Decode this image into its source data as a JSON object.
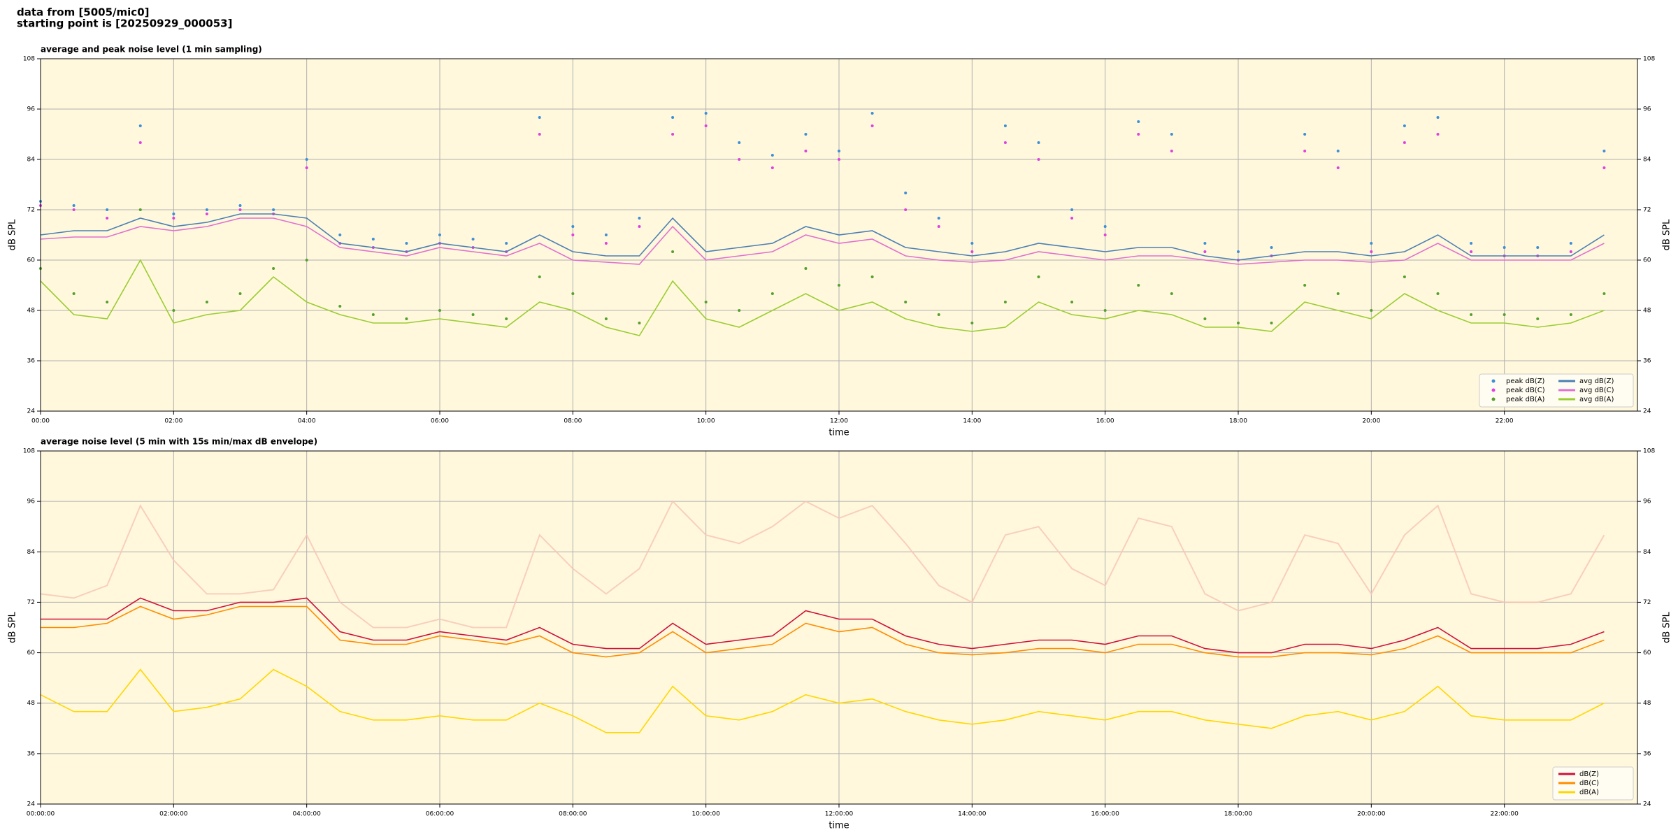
{
  "header": [
    "data from [5005/mic0]",
    "starting point is [20250929_000053]"
  ],
  "chart_data": [
    {
      "type": "line",
      "title": "average and peak noise level (1 min sampling)",
      "x_label": "time",
      "y_label": "dB SPL",
      "xlim": [
        0,
        24
      ],
      "ylim": [
        24,
        108
      ],
      "yticks": [
        24,
        36,
        48,
        60,
        72,
        84,
        96,
        108
      ],
      "xticks": [
        {
          "value": 0,
          "label": "00:00"
        },
        {
          "value": 2,
          "label": "02:00"
        },
        {
          "value": 4,
          "label": "04:00"
        },
        {
          "value": 6,
          "label": "06:00"
        },
        {
          "value": 8,
          "label": "08:00"
        },
        {
          "value": 10,
          "label": "10:00"
        },
        {
          "value": 12,
          "label": "12:00"
        },
        {
          "value": 14,
          "label": "14:00"
        },
        {
          "value": 16,
          "label": "16:00"
        },
        {
          "value": 18,
          "label": "18:00"
        },
        {
          "value": 20,
          "label": "20:00"
        },
        {
          "value": 22,
          "label": "22:00"
        }
      ],
      "grid": true,
      "legend": "lower right",
      "background": "#fff8dc",
      "x": [
        0,
        0.5,
        1,
        1.5,
        2,
        2.5,
        3,
        3.5,
        4,
        4.5,
        5,
        5.5,
        6,
        6.5,
        7,
        7.5,
        8,
        8.5,
        9,
        9.5,
        10,
        10.5,
        11,
        11.5,
        12,
        12.5,
        13,
        13.5,
        14,
        14.5,
        15,
        15.5,
        16,
        16.5,
        17,
        17.5,
        18,
        18.5,
        19,
        19.5,
        20,
        20.5,
        21,
        21.5,
        22,
        22.5,
        23,
        23.5
      ],
      "series": [
        {
          "name": "peak dB(Z)",
          "kind": "scatter",
          "color": "#3b8fd9",
          "values": [
            74,
            73,
            72,
            92,
            71,
            72,
            73,
            72,
            84,
            66,
            65,
            64,
            66,
            65,
            64,
            94,
            68,
            66,
            70,
            94,
            95,
            88,
            85,
            90,
            86,
            95,
            76,
            70,
            64,
            92,
            88,
            72,
            68,
            93,
            90,
            64,
            62,
            63,
            90,
            86,
            64,
            92,
            94,
            64,
            63,
            63,
            64,
            86
          ]
        },
        {
          "name": "peak dB(C)",
          "kind": "scatter",
          "color": "#e040e0",
          "values": [
            73,
            72,
            70,
            88,
            70,
            71,
            72,
            71,
            82,
            64,
            63,
            62,
            64,
            63,
            62,
            90,
            66,
            64,
            68,
            90,
            92,
            84,
            82,
            86,
            84,
            92,
            72,
            68,
            62,
            88,
            84,
            70,
            66,
            90,
            86,
            62,
            60,
            61,
            86,
            82,
            62,
            88,
            90,
            62,
            61,
            61,
            62,
            82
          ]
        },
        {
          "name": "peak dB(A)",
          "kind": "scatter",
          "color": "#55a030",
          "values": [
            58,
            52,
            50,
            72,
            48,
            50,
            52,
            58,
            60,
            49,
            47,
            46,
            48,
            47,
            46,
            56,
            52,
            46,
            45,
            62,
            50,
            48,
            52,
            58,
            54,
            56,
            50,
            47,
            45,
            50,
            56,
            50,
            48,
            54,
            52,
            46,
            45,
            45,
            54,
            52,
            48,
            56,
            52,
            47,
            47,
            46,
            47,
            52
          ]
        },
        {
          "name": "avg dB(Z)",
          "kind": "line",
          "color": "#4a7fb5",
          "values": [
            66,
            67,
            67,
            70,
            68,
            69,
            71,
            71,
            70,
            64,
            63,
            62,
            64,
            63,
            62,
            66,
            62,
            61,
            61,
            70,
            62,
            63,
            64,
            68,
            66,
            67,
            63,
            62,
            61,
            62,
            64,
            63,
            62,
            63,
            63,
            61,
            60,
            61,
            62,
            62,
            61,
            62,
            66,
            61,
            61,
            61,
            61,
            66
          ]
        },
        {
          "name": "avg dB(C)",
          "kind": "line",
          "color": "#e070d0",
          "values": [
            65,
            65.5,
            65.5,
            68,
            67,
            68,
            70,
            70,
            68,
            63,
            62,
            61,
            63,
            62,
            61,
            64,
            60,
            59.5,
            59,
            68,
            60,
            61,
            62,
            66,
            64,
            65,
            61,
            60,
            59.5,
            60,
            62,
            61,
            60,
            61,
            61,
            60,
            59,
            59.5,
            60,
            60,
            59.5,
            60,
            64,
            60,
            60,
            60,
            60,
            64
          ]
        },
        {
          "name": "avg dB(A)",
          "kind": "line",
          "color": "#9acd32",
          "values": [
            55,
            47,
            46,
            60,
            45,
            47,
            48,
            56,
            50,
            47,
            45,
            45,
            46,
            45,
            44,
            50,
            48,
            44,
            42,
            55,
            46,
            44,
            48,
            52,
            48,
            50,
            46,
            44,
            43,
            44,
            50,
            47,
            46,
            48,
            47,
            44,
            44,
            43,
            50,
            48,
            46,
            52,
            48,
            45,
            45,
            44,
            45,
            48
          ]
        }
      ]
    },
    {
      "type": "line",
      "title": "average noise level (5 min with 15s min/max dB envelope)",
      "x_label": "time",
      "y_label": "dB SPL",
      "xlim": [
        0,
        24
      ],
      "ylim": [
        24,
        108
      ],
      "yticks": [
        24,
        36,
        48,
        60,
        72,
        84,
        96,
        108
      ],
      "xticks": [
        {
          "value": 0,
          "label": "00:00:00"
        },
        {
          "value": 2,
          "label": "02:00:00"
        },
        {
          "value": 4,
          "label": "04:00:00"
        },
        {
          "value": 6,
          "label": "06:00:00"
        },
        {
          "value": 8,
          "label": "08:00:00"
        },
        {
          "value": 10,
          "label": "10:00:00"
        },
        {
          "value": 12,
          "label": "12:00:00"
        },
        {
          "value": 14,
          "label": "14:00:00"
        },
        {
          "value": 16,
          "label": "16:00:00"
        },
        {
          "value": 18,
          "label": "18:00:00"
        },
        {
          "value": 20,
          "label": "20:00:00"
        },
        {
          "value": 22,
          "label": "22:00:00"
        }
      ],
      "grid": true,
      "legend": "lower right",
      "background": "#fff8dc",
      "x": [
        0,
        0.5,
        1,
        1.5,
        2,
        2.5,
        3,
        3.5,
        4,
        4.5,
        5,
        5.5,
        6,
        6.5,
        7,
        7.5,
        8,
        8.5,
        9,
        9.5,
        10,
        10.5,
        11,
        11.5,
        12,
        12.5,
        13,
        13.5,
        14,
        14.5,
        15,
        15.5,
        16,
        16.5,
        17,
        17.5,
        18,
        18.5,
        19,
        19.5,
        20,
        20.5,
        21,
        21.5,
        22,
        22.5,
        23,
        23.5
      ],
      "envelope": {
        "color": "#f6c4b4",
        "values": [
          74,
          73,
          76,
          95,
          82,
          74,
          74,
          75,
          88,
          72,
          66,
          66,
          68,
          66,
          66,
          88,
          80,
          74,
          80,
          96,
          88,
          86,
          90,
          96,
          92,
          95,
          86,
          76,
          72,
          88,
          90,
          80,
          76,
          92,
          90,
          74,
          70,
          72,
          88,
          86,
          74,
          88,
          95,
          74,
          72,
          72,
          74,
          88
        ]
      },
      "series": [
        {
          "name": "dB(Z)",
          "kind": "line",
          "color": "#d0103a",
          "values": [
            68,
            68,
            68,
            73,
            70,
            70,
            72,
            72,
            73,
            65,
            63,
            63,
            65,
            64,
            63,
            66,
            62,
            61,
            61,
            67,
            62,
            63,
            64,
            70,
            68,
            68,
            64,
            62,
            61,
            62,
            63,
            63,
            62,
            64,
            64,
            61,
            60,
            60,
            62,
            62,
            61,
            63,
            66,
            61,
            61,
            61,
            62,
            65
          ]
        },
        {
          "name": "dB(C)",
          "kind": "line",
          "color": "#ff8c00",
          "values": [
            66,
            66,
            67,
            71,
            68,
            69,
            71,
            71,
            71,
            63,
            62,
            62,
            64,
            63,
            62,
            64,
            60,
            59,
            60,
            65,
            60,
            61,
            62,
            67,
            65,
            66,
            62,
            60,
            59.5,
            60,
            61,
            61,
            60,
            62,
            62,
            60,
            59,
            59,
            60,
            60,
            59.5,
            61,
            64,
            60,
            60,
            60,
            60,
            63
          ]
        },
        {
          "name": "dB(A)",
          "kind": "line",
          "color": "#ffd700",
          "values": [
            50,
            46,
            46,
            56,
            46,
            47,
            49,
            56,
            52,
            46,
            44,
            44,
            45,
            44,
            44,
            48,
            45,
            41,
            41,
            52,
            45,
            44,
            46,
            50,
            48,
            49,
            46,
            44,
            43,
            44,
            46,
            45,
            44,
            46,
            46,
            44,
            43,
            42,
            45,
            46,
            44,
            46,
            52,
            45,
            44,
            44,
            44,
            48
          ]
        }
      ]
    }
  ]
}
